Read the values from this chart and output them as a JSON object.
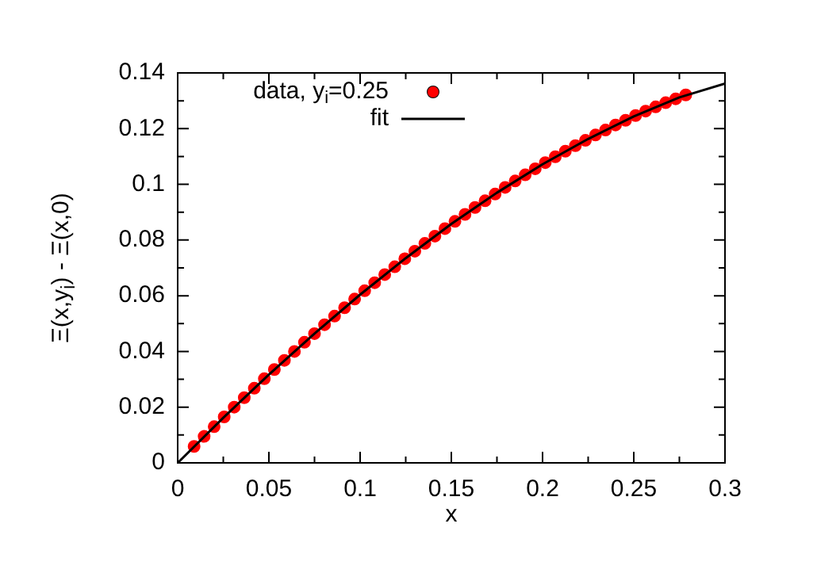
{
  "chart_data": {
    "type": "scatter",
    "xlabel": "x",
    "ylabel": "Ξ(x,y$_{i}$) - Ξ(x,0)",
    "xlim": [
      0,
      0.3
    ],
    "xticks": [
      0,
      0.05,
      0.1,
      0.15,
      0.2,
      0.25,
      0.3
    ],
    "ylim": [
      0,
      0.14
    ],
    "yticks": [
      0,
      0.02,
      0.04,
      0.06,
      0.08,
      0.1,
      0.12,
      0.14
    ],
    "legend": "top left",
    "series": [
      {
        "name": "data, y$_{i}$=0.25",
        "marker": "circle",
        "color": "#ff0000",
        "x": [
          0.009,
          0.0145,
          0.02,
          0.0255,
          0.031,
          0.0365,
          0.042,
          0.0475,
          0.053,
          0.0585,
          0.064,
          0.0695,
          0.075,
          0.0805,
          0.086,
          0.0915,
          0.097,
          0.1025,
          0.108,
          0.1135,
          0.119,
          0.1245,
          0.13,
          0.1355,
          0.141,
          0.1465,
          0.152,
          0.1575,
          0.163,
          0.1685,
          0.174,
          0.1795,
          0.185,
          0.1905,
          0.196,
          0.2015,
          0.207,
          0.2125,
          0.218,
          0.2235,
          0.229,
          0.2345,
          0.24,
          0.2455,
          0.251,
          0.2565,
          0.262,
          0.2675,
          0.273,
          0.2785
        ],
        "values": [
          0.0059,
          0.0095,
          0.013,
          0.0165,
          0.02,
          0.0234,
          0.0268,
          0.0302,
          0.0335,
          0.0368,
          0.04,
          0.0433,
          0.0464,
          0.0496,
          0.0527,
          0.0557,
          0.0588,
          0.0618,
          0.0647,
          0.0676,
          0.0704,
          0.0733,
          0.076,
          0.0788,
          0.0814,
          0.0841,
          0.0867,
          0.0892,
          0.0917,
          0.0941,
          0.0965,
          0.0989,
          0.1012,
          0.1034,
          0.1056,
          0.1078,
          0.1099,
          0.1119,
          0.1139,
          0.1158,
          0.1177,
          0.1195,
          0.1213,
          0.123,
          0.1247,
          0.1263,
          0.1278,
          0.1293,
          0.1307,
          0.1321
        ]
      },
      {
        "name": "fit",
        "type": "line",
        "marker": "none",
        "line_style": "solid",
        "color": "#000000",
        "x": [
          0,
          0.025,
          0.05,
          0.075,
          0.1,
          0.125,
          0.15,
          0.175,
          0.2,
          0.225,
          0.25,
          0.275,
          0.3
        ],
        "values": [
          0,
          0.0162,
          0.0317,
          0.0464,
          0.0604,
          0.0735,
          0.0858,
          0.097,
          0.1072,
          0.1163,
          0.1244,
          0.1312,
          0.1362
        ]
      }
    ]
  }
}
